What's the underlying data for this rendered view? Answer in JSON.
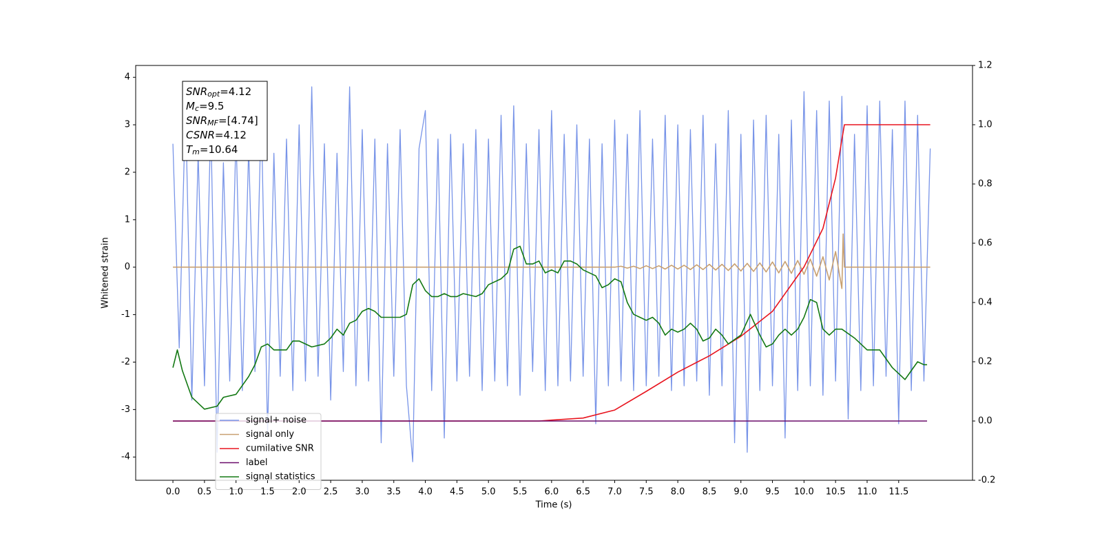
{
  "chart_data": {
    "type": "line",
    "xlabel": "Time (s)",
    "ylabel": "Whitened strain",
    "xlim": [
      -0.59,
      12.67
    ],
    "ylim": [
      -4.49,
      4.25
    ],
    "y2lim": [
      -0.2,
      1.2
    ],
    "xticks": [
      {
        "value": 0,
        "label": "0.0"
      },
      {
        "value": 0.5,
        "label": "0.5"
      },
      {
        "value": 1,
        "label": "1.0"
      },
      {
        "value": 1.5,
        "label": "1.5"
      },
      {
        "value": 2,
        "label": "2.0"
      },
      {
        "value": 2.5,
        "label": "2.5"
      },
      {
        "value": 3,
        "label": "3.0"
      },
      {
        "value": 3.5,
        "label": "3.5"
      },
      {
        "value": 4,
        "label": "4.0"
      },
      {
        "value": 4.5,
        "label": "4.5"
      },
      {
        "value": 5,
        "label": "5.0"
      },
      {
        "value": 5.5,
        "label": "5.5"
      },
      {
        "value": 6,
        "label": "6.0"
      },
      {
        "value": 6.5,
        "label": "6.5"
      },
      {
        "value": 7,
        "label": "7.0"
      },
      {
        "value": 7.5,
        "label": "7.5"
      },
      {
        "value": 8,
        "label": "8.0"
      },
      {
        "value": 8.5,
        "label": "8.5"
      },
      {
        "value": 9,
        "label": "9.0"
      },
      {
        "value": 9.5,
        "label": "9.5"
      },
      {
        "value": 10,
        "label": "10.0"
      },
      {
        "value": 10.5,
        "label": "10.5"
      },
      {
        "value": 11,
        "label": "11.0"
      },
      {
        "value": 11.5,
        "label": "11.5"
      }
    ],
    "yticks": [
      -4,
      -3,
      -2,
      -1,
      0,
      1,
      2,
      3,
      4
    ],
    "y2ticks": [
      -0.2,
      {
        "value": 0,
        "label": "0.0"
      },
      0.2,
      0.4,
      0.6,
      0.8,
      {
        "value": 1,
        "label": "1.0"
      },
      1.2
    ],
    "legend": "lower left",
    "annotation": [
      {
        "name": "SNR",
        "sub": "opt",
        "text": "=4.12"
      },
      {
        "name": "M",
        "sub": "c",
        "text": "=9.5"
      },
      {
        "name": "SNR",
        "sub": "MF",
        "text": "=[4.74]"
      },
      {
        "name": "CSNR",
        "sub": null,
        "text": "=4.12"
      },
      {
        "name": "T",
        "sub": "m",
        "text": "=10.64"
      }
    ],
    "series": [
      {
        "name": "signal+ noise",
        "color": "#7894e8",
        "axis": "y",
        "x": [
          0,
          0.1,
          0.2,
          0.3,
          0.4,
          0.5,
          0.6,
          0.7,
          0.8,
          0.9,
          1,
          1.1,
          1.2,
          1.3,
          1.4,
          1.5,
          1.6,
          1.7,
          1.8,
          1.9,
          2,
          2.1,
          2.2,
          2.3,
          2.4,
          2.5,
          2.6,
          2.7,
          2.8,
          2.9,
          3,
          3.1,
          3.2,
          3.3,
          3.4,
          3.5,
          3.6,
          3.7,
          3.8,
          3.9,
          4,
          4.1,
          4.2,
          4.3,
          4.4,
          4.5,
          4.6,
          4.7,
          4.8,
          4.9,
          5,
          5.1,
          5.2,
          5.3,
          5.4,
          5.5,
          5.6,
          5.7,
          5.8,
          5.9,
          6,
          6.1,
          6.2,
          6.3,
          6.4,
          6.5,
          6.6,
          6.7,
          6.8,
          6.9,
          7,
          7.1,
          7.2,
          7.3,
          7.4,
          7.5,
          7.6,
          7.7,
          7.8,
          7.9,
          8,
          8.1,
          8.2,
          8.3,
          8.4,
          8.5,
          8.6,
          8.7,
          8.8,
          8.9,
          9,
          9.1,
          9.2,
          9.3,
          9.4,
          9.5,
          9.6,
          9.7,
          9.8,
          9.9,
          10,
          10.1,
          10.2,
          10.3,
          10.4,
          10.5,
          10.6,
          10.7,
          10.8,
          10.9,
          11,
          11.1,
          11.2,
          11.3,
          11.4,
          11.5,
          11.6,
          11.7,
          11.8,
          11.9,
          12
        ],
        "values": [
          2.6,
          -1.7,
          3.4,
          -2.8,
          2.4,
          -2.5,
          3.1,
          -3.9,
          2.2,
          -2.4,
          2.8,
          -2.6,
          2.5,
          -2.2,
          3.3,
          -3.5,
          2.4,
          -2.3,
          2.7,
          -2.6,
          3.0,
          -2.4,
          3.8,
          -2.3,
          2.6,
          -2.8,
          2.4,
          -2.2,
          3.8,
          -2.5,
          2.9,
          -2.4,
          2.7,
          -3.7,
          2.6,
          -2.3,
          2.9,
          -2.5,
          -4.1,
          2.5,
          3.3,
          -2.6,
          2.7,
          -3.6,
          2.8,
          -2.4,
          2.6,
          -2.3,
          2.9,
          -2.6,
          2.7,
          -2.4,
          3.2,
          -2.5,
          3.4,
          -2.7,
          2.6,
          -2.2,
          2.9,
          -2.6,
          3.3,
          -2.5,
          2.8,
          -2.4,
          3.0,
          -2.3,
          2.7,
          -3.3,
          2.6,
          -2.5,
          3.1,
          -2.4,
          2.8,
          -2.6,
          3.3,
          -2.5,
          2.7,
          -2.3,
          3.2,
          -2.6,
          3.0,
          -2.5,
          2.9,
          -2.4,
          3.2,
          -2.7,
          2.6,
          -2.5,
          3.3,
          -3.7,
          2.8,
          -3.9,
          3.1,
          -2.6,
          3.2,
          -2.5,
          2.8,
          -3.6,
          3.1,
          -2.6,
          3.7,
          -2.5,
          3.3,
          -2.7,
          3.5,
          -2.4,
          3.6,
          -3.2,
          2.8,
          -2.6,
          3.4,
          -2.5,
          3.5,
          -2.3,
          2.9,
          -3.3,
          3.5,
          -2.6,
          3.2,
          -2.4,
          2.5
        ]
      },
      {
        "name": "signal only",
        "color": "#c8a070",
        "axis": "y",
        "x": [
          0,
          7,
          7.1,
          7.2,
          7.3,
          7.4,
          7.5,
          7.6,
          7.7,
          7.8,
          7.9,
          8,
          8.1,
          8.2,
          8.3,
          8.4,
          8.5,
          8.6,
          8.7,
          8.8,
          8.9,
          9,
          9.1,
          9.2,
          9.3,
          9.4,
          9.5,
          9.6,
          9.7,
          9.8,
          9.9,
          10,
          10.1,
          10.2,
          10.3,
          10.4,
          10.5,
          10.6,
          10.62,
          10.64,
          12
        ],
        "values": [
          0,
          0,
          0.02,
          -0.02,
          0.02,
          -0.03,
          0.03,
          -0.03,
          0.03,
          -0.04,
          0.04,
          -0.04,
          0.04,
          -0.05,
          0.05,
          -0.05,
          0.06,
          -0.06,
          0.06,
          -0.07,
          0.07,
          -0.08,
          0.08,
          -0.09,
          0.09,
          -0.1,
          0.11,
          -0.12,
          0.12,
          -0.13,
          0.14,
          -0.15,
          0.17,
          -0.19,
          0.22,
          -0.27,
          0.33,
          -0.45,
          0.7,
          0,
          0
        ]
      },
      {
        "name": "cumilative SNR",
        "color": "#e8141e",
        "axis": "y2",
        "x": [
          0,
          5.8,
          6,
          6.5,
          7,
          7.5,
          8,
          8.5,
          9,
          9.5,
          10,
          10.3,
          10.5,
          10.6,
          10.64,
          12
        ],
        "values": [
          0,
          0,
          0.003,
          0.01,
          0.037,
          0.1,
          0.165,
          0.22,
          0.286,
          0.37,
          0.52,
          0.65,
          0.82,
          0.95,
          1,
          1
        ]
      },
      {
        "name": "label",
        "color": "#6a0a6a",
        "axis": "y2",
        "x": [
          0,
          11.95
        ],
        "values": [
          0,
          0
        ]
      },
      {
        "name": "signal statistics",
        "color": "#127812",
        "axis": "y2",
        "x": [
          0,
          0.07,
          0.15,
          0.3,
          0.5,
          0.7,
          0.8,
          1,
          1.2,
          1.3,
          1.4,
          1.5,
          1.6,
          1.8,
          1.9,
          2,
          2.2,
          2.4,
          2.5,
          2.6,
          2.7,
          2.8,
          2.9,
          3,
          3.1,
          3.2,
          3.3,
          3.4,
          3.5,
          3.6,
          3.7,
          3.8,
          3.9,
          4,
          4.1,
          4.2,
          4.3,
          4.4,
          4.5,
          4.6,
          4.8,
          4.9,
          5,
          5.2,
          5.3,
          5.4,
          5.5,
          5.6,
          5.7,
          5.8,
          5.9,
          6,
          6.1,
          6.2,
          6.3,
          6.4,
          6.5,
          6.7,
          6.8,
          6.9,
          7,
          7.1,
          7.2,
          7.3,
          7.4,
          7.5,
          7.6,
          7.7,
          7.8,
          7.9,
          8,
          8.1,
          8.2,
          8.3,
          8.4,
          8.5,
          8.6,
          8.7,
          8.8,
          9,
          9.15,
          9.3,
          9.4,
          9.5,
          9.6,
          9.7,
          9.8,
          9.9,
          10,
          10.1,
          10.2,
          10.3,
          10.4,
          10.5,
          10.6,
          10.8,
          11,
          11.2,
          11.4,
          11.6,
          11.7,
          11.8,
          11.9,
          11.95
        ],
        "values": [
          0.18,
          0.24,
          0.17,
          0.08,
          0.04,
          0.05,
          0.08,
          0.09,
          0.15,
          0.19,
          0.25,
          0.26,
          0.24,
          0.24,
          0.27,
          0.27,
          0.25,
          0.26,
          0.28,
          0.31,
          0.29,
          0.33,
          0.34,
          0.37,
          0.38,
          0.37,
          0.35,
          0.35,
          0.35,
          0.35,
          0.36,
          0.46,
          0.48,
          0.44,
          0.42,
          0.42,
          0.43,
          0.42,
          0.42,
          0.43,
          0.42,
          0.43,
          0.46,
          0.48,
          0.5,
          0.58,
          0.59,
          0.53,
          0.53,
          0.54,
          0.5,
          0.51,
          0.5,
          0.54,
          0.54,
          0.53,
          0.51,
          0.49,
          0.45,
          0.46,
          0.48,
          0.47,
          0.4,
          0.36,
          0.35,
          0.34,
          0.35,
          0.33,
          0.29,
          0.31,
          0.3,
          0.31,
          0.33,
          0.31,
          0.27,
          0.28,
          0.31,
          0.29,
          0.26,
          0.29,
          0.36,
          0.29,
          0.25,
          0.26,
          0.29,
          0.31,
          0.29,
          0.31,
          0.35,
          0.41,
          0.4,
          0.31,
          0.29,
          0.31,
          0.31,
          0.28,
          0.24,
          0.24,
          0.18,
          0.14,
          0.17,
          0.2,
          0.19,
          0.19
        ]
      }
    ]
  }
}
